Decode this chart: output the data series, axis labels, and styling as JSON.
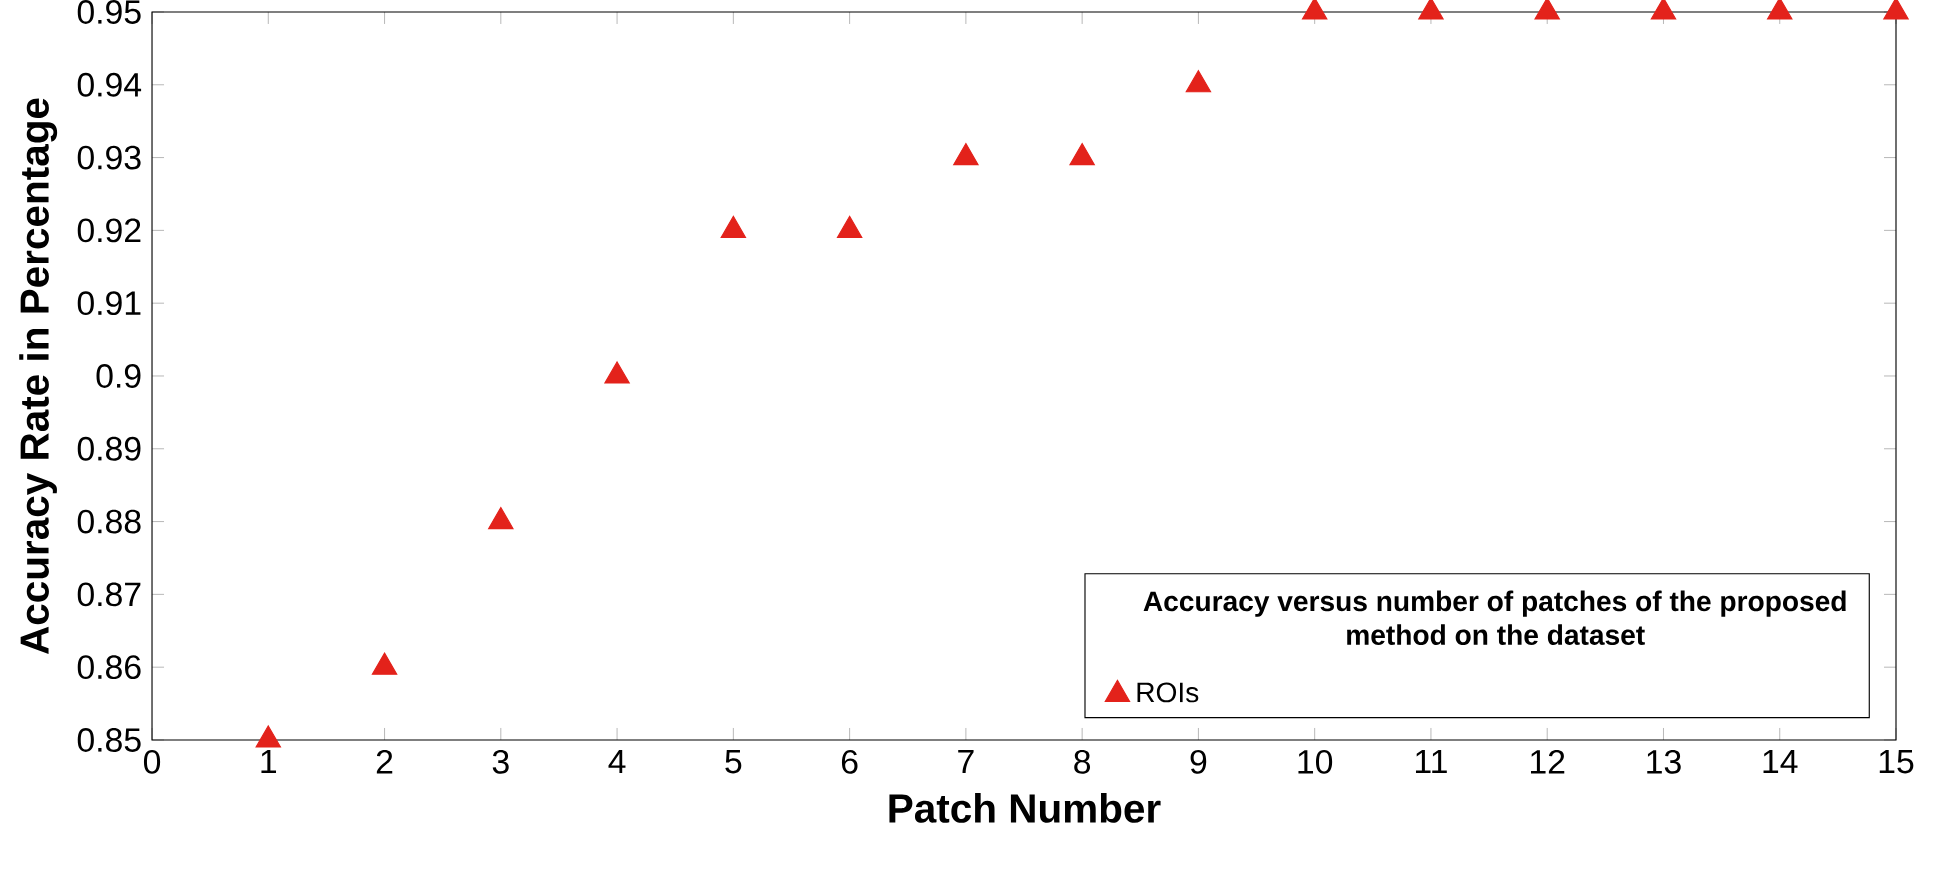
{
  "chart_data": {
    "type": "scatter",
    "xlabel": "Patch Number",
    "ylabel": "Accuracy Rate in Percentage",
    "legend_title": "Accuracy versus number of patches of the proposed method on the dataset",
    "x": [
      1,
      2,
      3,
      4,
      5,
      6,
      7,
      8,
      9,
      10,
      11,
      12,
      13,
      14,
      15
    ],
    "series": [
      {
        "name": "ROIs",
        "color": "#e3221b",
        "values": [
          0.85,
          0.86,
          0.88,
          0.9,
          0.92,
          0.92,
          0.93,
          0.93,
          0.94,
          0.95,
          0.95,
          0.95,
          0.95,
          0.95,
          0.95
        ]
      }
    ],
    "xlim": [
      0,
      15
    ],
    "ylim": [
      0.85,
      0.95
    ],
    "xticks": [
      0,
      1,
      2,
      3,
      4,
      5,
      6,
      7,
      8,
      9,
      10,
      11,
      12,
      13,
      14,
      15
    ],
    "yticks": [
      0.85,
      0.86,
      0.87,
      0.88,
      0.89,
      0.9,
      0.91,
      0.92,
      0.93,
      0.94,
      0.95
    ],
    "marker": "triangle",
    "legend": "bottom right",
    "grid": false
  }
}
